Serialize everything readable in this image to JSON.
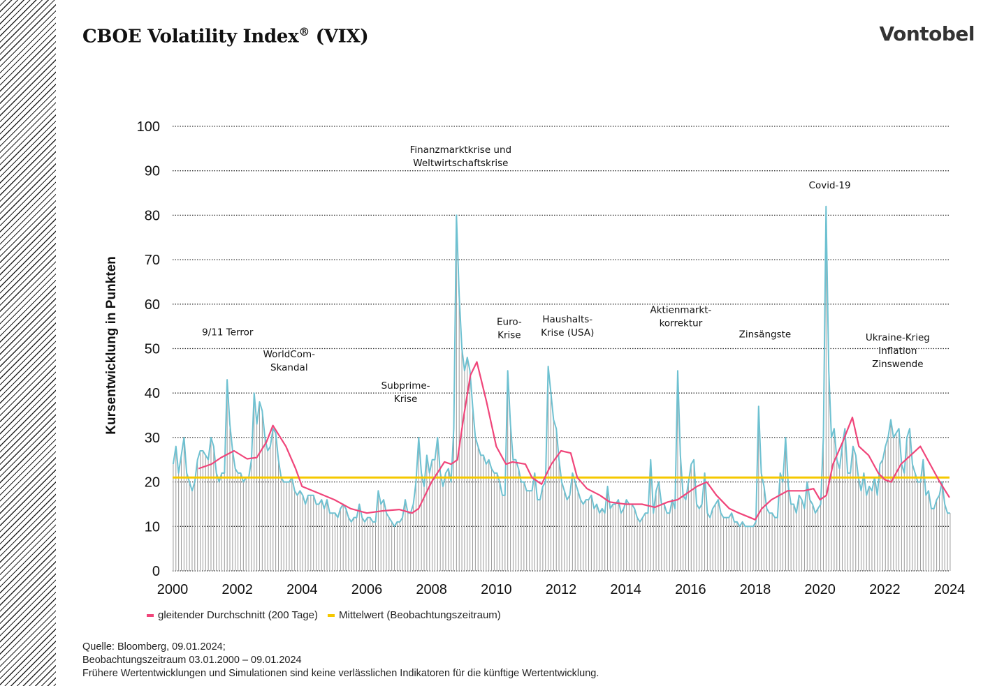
{
  "brand": "Vontobel",
  "title": "CBOE Volatility Index",
  "title_mark": "®",
  "title_suffix": " (VIX)",
  "legend": [
    {
      "label": "gleitender Durchschnitt (200 Tage)",
      "color": "#f0457a"
    },
    {
      "label": "Mittelwert (Beobachtungszeitraum)",
      "color": "#f5c800"
    }
  ],
  "footer": [
    "Quelle: Bloomberg, 09.01.2024;",
    "Beobachtungszeitraum 03.01.2000 – 09.01.2024",
    "Frühere Wertentwicklungen und Simulationen sind keine verlässlichen Indikatoren für die künftige Wertentwicklung."
  ],
  "chart_data": {
    "type": "line",
    "ylabel": "Kursentwicklung in Punkten",
    "xlim": [
      2000,
      2024
    ],
    "ylim": [
      0,
      100
    ],
    "x_ticks": [
      "2000",
      "2002",
      "2004",
      "2006",
      "2008",
      "2010",
      "2012",
      "2014",
      "2016",
      "2018",
      "2020",
      "2022",
      "2024"
    ],
    "y_ticks": [
      "0",
      "10",
      "20",
      "30",
      "40",
      "50",
      "60",
      "70",
      "80",
      "90",
      "100"
    ],
    "grid": "horizontal dotted",
    "legend_position": "bottom-left",
    "colors": {
      "vix": "#6ec1d1",
      "bars": "#9a9a9a",
      "moving_average": "#f0457a",
      "mean": "#f5c800"
    },
    "vix_monthly_start": "2000-01",
    "vix_monthly": [
      24,
      28,
      22,
      26,
      30,
      22,
      20,
      18,
      20,
      25,
      27,
      27,
      26,
      25,
      30,
      28,
      22,
      20,
      22,
      22,
      43,
      33,
      27,
      23,
      22,
      22,
      20,
      21,
      21,
      25,
      40,
      33,
      38,
      36,
      30,
      27,
      28,
      32,
      31,
      25,
      21,
      20,
      20,
      20,
      21,
      18,
      17,
      18,
      17,
      15,
      17,
      17,
      17,
      15,
      15,
      16,
      14,
      16,
      13,
      13,
      13,
      12,
      14,
      15,
      14,
      12,
      11,
      12,
      12,
      15,
      12,
      11,
      12,
      12,
      11,
      11,
      18,
      15,
      16,
      13,
      12,
      11,
      10,
      11,
      11,
      12,
      16,
      13,
      13,
      15,
      20,
      30,
      22,
      19,
      26,
      22,
      25,
      25,
      30,
      22,
      19,
      22,
      23,
      20,
      32,
      80,
      62,
      50,
      45,
      48,
      45,
      37,
      30,
      28,
      26,
      26,
      24,
      25,
      23,
      22,
      22,
      20,
      17,
      17,
      45,
      33,
      25,
      25,
      23,
      20,
      20,
      18,
      18,
      18,
      22,
      16,
      16,
      19,
      20,
      46,
      40,
      34,
      32,
      25,
      20,
      18,
      16,
      17,
      22,
      20,
      18,
      16,
      15,
      16,
      16,
      17,
      14,
      15,
      13,
      14,
      13,
      19,
      14,
      15,
      15,
      16,
      13,
      14,
      16,
      15,
      15,
      14,
      12,
      11,
      12,
      13,
      13,
      25,
      13,
      18,
      20,
      15,
      15,
      13,
      13,
      16,
      14,
      45,
      26,
      17,
      16,
      20,
      24,
      25,
      15,
      14,
      15,
      22,
      13,
      12,
      14,
      15,
      16,
      13,
      12,
      12,
      12,
      13,
      11,
      11,
      10,
      11,
      10,
      10,
      10,
      10,
      11,
      37,
      22,
      19,
      14,
      13,
      13,
      12,
      12,
      22,
      20,
      30,
      19,
      15,
      15,
      13,
      17,
      16,
      14,
      20,
      16,
      15,
      13,
      14,
      15,
      30,
      82,
      45,
      30,
      32,
      25,
      23,
      28,
      32,
      22,
      22,
      28,
      26,
      21,
      18,
      22,
      17,
      19,
      18,
      21,
      17,
      24,
      25,
      28,
      30,
      34,
      30,
      31,
      32,
      24,
      22,
      30,
      32,
      24,
      22,
      20,
      20,
      25,
      17,
      18,
      14,
      14,
      16,
      17,
      20,
      15,
      13,
      13
    ],
    "moving_average": [
      [
        2000.8,
        23
      ],
      [
        2001.2,
        24
      ],
      [
        2001.5,
        25.5
      ],
      [
        2001.9,
        27
      ],
      [
        2002.3,
        25.2
      ],
      [
        2002.6,
        25.5
      ],
      [
        2002.9,
        29
      ],
      [
        2003.1,
        32.7
      ],
      [
        2003.5,
        28
      ],
      [
        2003.8,
        23
      ],
      [
        2004.0,
        19
      ],
      [
        2004.5,
        17.5
      ],
      [
        2005.0,
        16
      ],
      [
        2005.5,
        14
      ],
      [
        2006.0,
        13
      ],
      [
        2006.5,
        13.5
      ],
      [
        2007.0,
        13.8
      ],
      [
        2007.4,
        13
      ],
      [
        2007.6,
        14
      ],
      [
        2008.0,
        20
      ],
      [
        2008.4,
        24.5
      ],
      [
        2008.6,
        24
      ],
      [
        2008.8,
        25
      ],
      [
        2009.0,
        35
      ],
      [
        2009.2,
        44
      ],
      [
        2009.4,
        47
      ],
      [
        2009.7,
        38
      ],
      [
        2010.0,
        28
      ],
      [
        2010.3,
        24
      ],
      [
        2010.5,
        24.5
      ],
      [
        2010.9,
        24
      ],
      [
        2011.1,
        21
      ],
      [
        2011.4,
        19.5
      ],
      [
        2011.7,
        24
      ],
      [
        2012.0,
        27
      ],
      [
        2012.3,
        26.5
      ],
      [
        2012.5,
        21
      ],
      [
        2012.8,
        18.5
      ],
      [
        2013.2,
        17
      ],
      [
        2013.5,
        15.5
      ],
      [
        2014.0,
        15
      ],
      [
        2014.5,
        15
      ],
      [
        2014.9,
        14.3
      ],
      [
        2015.3,
        15.5
      ],
      [
        2015.6,
        16
      ],
      [
        2015.8,
        17
      ],
      [
        2016.2,
        19
      ],
      [
        2016.5,
        20
      ],
      [
        2016.8,
        17
      ],
      [
        2017.2,
        14
      ],
      [
        2017.5,
        13
      ],
      [
        2018.0,
        11.5
      ],
      [
        2018.2,
        14
      ],
      [
        2018.5,
        16
      ],
      [
        2019.0,
        18
      ],
      [
        2019.5,
        18
      ],
      [
        2019.8,
        18.5
      ],
      [
        2020.0,
        16
      ],
      [
        2020.2,
        17
      ],
      [
        2020.4,
        24
      ],
      [
        2020.7,
        29
      ],
      [
        2021.0,
        34.5
      ],
      [
        2021.2,
        28
      ],
      [
        2021.5,
        26
      ],
      [
        2021.8,
        22
      ],
      [
        2022.0,
        20.5
      ],
      [
        2022.2,
        20
      ],
      [
        2022.5,
        24
      ],
      [
        2022.8,
        26
      ],
      [
        2023.1,
        28
      ],
      [
        2023.4,
        24
      ],
      [
        2023.7,
        20
      ],
      [
        2024.0,
        16.5
      ]
    ],
    "mean": 21.0,
    "annotations": [
      {
        "x": 2001.7,
        "y": 53,
        "lines": [
          "9/11 Terror"
        ]
      },
      {
        "x": 2003.6,
        "y": 48,
        "lines": [
          "WorldCom-",
          "Skandal"
        ]
      },
      {
        "x": 2007.2,
        "y": 41,
        "lines": [
          "Subprime-",
          "Krise"
        ]
      },
      {
        "x": 2008.9,
        "y": 94,
        "lines": [
          "Finanzmarktkrise und",
          "Weltwirtschaftskrise"
        ]
      },
      {
        "x": 2010.4,
        "y": 55.3,
        "lines": [
          "Euro-",
          "Krise"
        ]
      },
      {
        "x": 2012.2,
        "y": 55.9,
        "lines": [
          "Haushalts-",
          "Krise (USA)"
        ]
      },
      {
        "x": 2015.7,
        "y": 58,
        "lines": [
          "Aktienmarkt-",
          "korrektur"
        ]
      },
      {
        "x": 2018.3,
        "y": 52.5,
        "lines": [
          "Zinsängste"
        ]
      },
      {
        "x": 2020.3,
        "y": 86,
        "lines": [
          "Covid-19"
        ]
      },
      {
        "x": 2022.4,
        "y": 51.8,
        "lines": [
          "Ukraine-Krieg",
          "Inflation",
          "Zinswende"
        ]
      }
    ]
  }
}
